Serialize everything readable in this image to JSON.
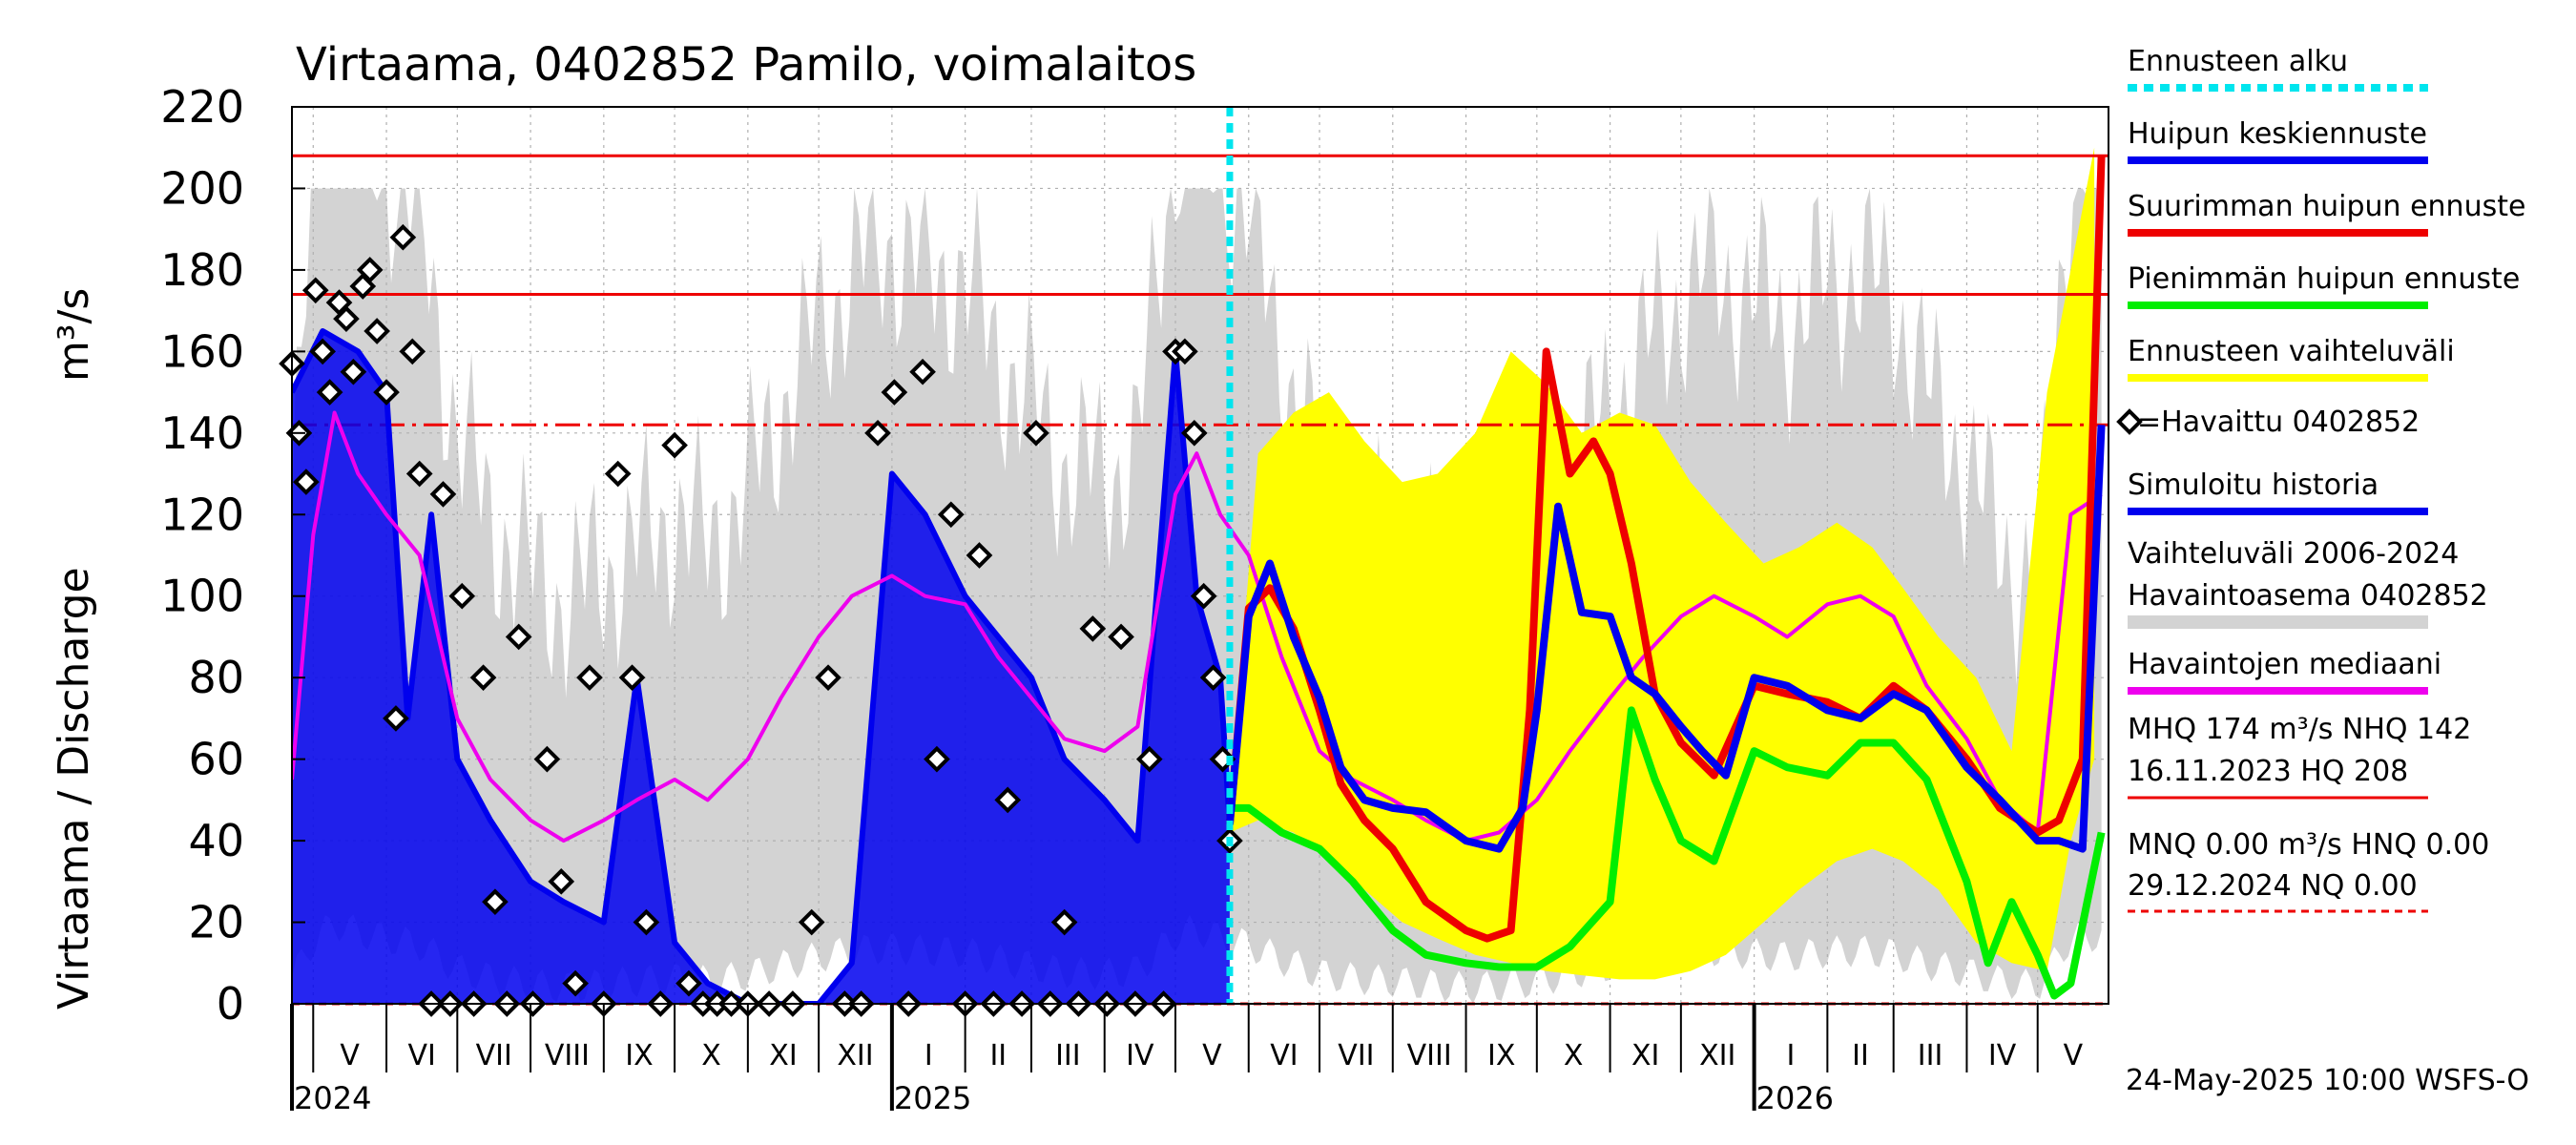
{
  "chart_data": {
    "type": "line",
    "title": "Virtaama, 0402852 Pamilo, voimalaitos",
    "ylabel": "Virtaama / Discharge",
    "yunit": "m³/s",
    "ylim": [
      0,
      220
    ],
    "yticks": [
      0,
      20,
      40,
      60,
      80,
      100,
      120,
      140,
      160,
      180,
      200,
      220
    ],
    "xlim": [
      "2024-04-22",
      "2026-05-31"
    ],
    "months": [
      {
        "label": "V",
        "start": "2024-05-01"
      },
      {
        "label": "VI",
        "start": "2024-06-01"
      },
      {
        "label": "VII",
        "start": "2024-07-01"
      },
      {
        "label": "VIII",
        "start": "2024-08-01"
      },
      {
        "label": "IX",
        "start": "2024-09-01"
      },
      {
        "label": "X",
        "start": "2024-10-01"
      },
      {
        "label": "XI",
        "start": "2024-11-01"
      },
      {
        "label": "XII",
        "start": "2024-12-01"
      },
      {
        "label": "I",
        "start": "2025-01-01"
      },
      {
        "label": "II",
        "start": "2025-02-01"
      },
      {
        "label": "III",
        "start": "2025-03-01"
      },
      {
        "label": "IV",
        "start": "2025-04-01"
      },
      {
        "label": "V",
        "start": "2025-05-01"
      },
      {
        "label": "VI",
        "start": "2025-06-01"
      },
      {
        "label": "VII",
        "start": "2025-07-01"
      },
      {
        "label": "VIII",
        "start": "2025-08-01"
      },
      {
        "label": "IX",
        "start": "2025-09-01"
      },
      {
        "label": "X",
        "start": "2025-10-01"
      },
      {
        "label": "XI",
        "start": "2025-11-01"
      },
      {
        "label": "XII",
        "start": "2025-12-01"
      },
      {
        "label": "I",
        "start": "2026-01-01"
      },
      {
        "label": "II",
        "start": "2026-02-01"
      },
      {
        "label": "III",
        "start": "2026-03-01"
      },
      {
        "label": "IV",
        "start": "2026-04-01"
      },
      {
        "label": "V",
        "start": "2026-05-01"
      }
    ],
    "years": [
      {
        "label": "2024",
        "date": "2024-04-22"
      },
      {
        "label": "2025",
        "date": "2025-01-01"
      },
      {
        "label": "2026",
        "date": "2026-01-01"
      }
    ],
    "forecast_start": "2025-05-24",
    "reference_lines": [
      {
        "name": "HQ",
        "value": 208,
        "style": "solid"
      },
      {
        "name": "MHQ",
        "value": 174,
        "style": "solid"
      },
      {
        "name": "NHQ",
        "value": 142,
        "style": "dashdot"
      },
      {
        "name": "MNQ",
        "value": 0,
        "style": "dashed"
      }
    ],
    "series": [
      {
        "name": "Ennusteen vaihteluväli",
        "type": "band",
        "x": [
          "2025-05-24",
          "2025-06-05",
          "2025-06-20",
          "2025-07-05",
          "2025-07-20",
          "2025-08-05",
          "2025-08-20",
          "2025-09-05",
          "2025-09-20",
          "2025-10-05",
          "2025-10-20",
          "2025-11-05",
          "2025-11-20",
          "2025-12-05",
          "2025-12-20",
          "2026-01-05",
          "2026-01-20",
          "2026-02-05",
          "2026-02-20",
          "2026-03-05",
          "2026-03-20",
          "2026-04-05",
          "2026-04-20",
          "2026-05-05",
          "2026-05-15",
          "2026-05-25"
        ],
        "low": [
          42,
          45,
          42,
          35,
          28,
          20,
          16,
          12,
          10,
          8,
          7,
          6,
          6,
          8,
          12,
          20,
          28,
          35,
          38,
          35,
          28,
          15,
          10,
          8,
          40,
          60
        ],
        "high": [
          48,
          135,
          145,
          150,
          138,
          128,
          130,
          140,
          160,
          152,
          140,
          145,
          142,
          128,
          118,
          108,
          112,
          118,
          112,
          102,
          90,
          80,
          62,
          150,
          180,
          210
        ]
      },
      {
        "name": "Huipun keskiennuste",
        "x": [
          "2025-05-24",
          "2025-06-01",
          "2025-06-10",
          "2025-06-20",
          "2025-07-01",
          "2025-07-10",
          "2025-07-20",
          "2025-08-01",
          "2025-08-15",
          "2025-09-01",
          "2025-09-15",
          "2025-09-25",
          "2025-10-01",
          "2025-10-10",
          "2025-10-20",
          "2025-11-01",
          "2025-11-10",
          "2025-11-20",
          "2025-12-01",
          "2025-12-10",
          "2025-12-20",
          "2026-01-01",
          "2026-01-15",
          "2026-02-01",
          "2026-02-15",
          "2026-03-01",
          "2026-03-15",
          "2026-04-01",
          "2026-04-15",
          "2026-05-01",
          "2026-05-10",
          "2026-05-20",
          "2026-05-28"
        ],
        "values": [
          44,
          95,
          108,
          90,
          75,
          58,
          50,
          48,
          47,
          40,
          38,
          48,
          72,
          122,
          96,
          95,
          80,
          76,
          68,
          62,
          56,
          80,
          78,
          72,
          70,
          76,
          72,
          58,
          50,
          40,
          40,
          38,
          142
        ]
      },
      {
        "name": "Suurimman huipun ennuste",
        "x": [
          "2025-05-24",
          "2025-06-01",
          "2025-06-10",
          "2025-06-20",
          "2025-07-01",
          "2025-07-10",
          "2025-07-20",
          "2025-08-01",
          "2025-08-15",
          "2025-09-01",
          "2025-09-10",
          "2025-09-20",
          "2025-09-28",
          "2025-10-05",
          "2025-10-15",
          "2025-10-25",
          "2025-11-01",
          "2025-11-10",
          "2025-11-20",
          "2025-12-01",
          "2025-12-15",
          "2026-01-01",
          "2026-01-15",
          "2026-02-01",
          "2026-02-15",
          "2026-03-01",
          "2026-03-15",
          "2026-04-01",
          "2026-04-15",
          "2026-05-01",
          "2026-05-10",
          "2026-05-20",
          "2026-05-28"
        ],
        "values": [
          44,
          97,
          102,
          92,
          72,
          54,
          45,
          38,
          25,
          18,
          16,
          18,
          72,
          160,
          130,
          138,
          130,
          108,
          76,
          64,
          56,
          78,
          76,
          74,
          70,
          78,
          72,
          60,
          48,
          42,
          45,
          60,
          208
        ]
      },
      {
        "name": "Pienimmän huipun ennuste",
        "x": [
          "2025-05-24",
          "2025-06-01",
          "2025-06-15",
          "2025-07-01",
          "2025-07-15",
          "2025-08-01",
          "2025-08-15",
          "2025-09-01",
          "2025-09-15",
          "2025-10-01",
          "2025-10-15",
          "2025-11-01",
          "2025-11-10",
          "2025-11-20",
          "2025-12-01",
          "2025-12-15",
          "2026-01-01",
          "2026-01-15",
          "2026-02-01",
          "2026-02-15",
          "2026-03-01",
          "2026-03-15",
          "2026-04-01",
          "2026-04-10",
          "2026-04-20",
          "2026-05-01",
          "2026-05-08",
          "2026-05-15",
          "2026-05-22",
          "2026-05-28"
        ],
        "values": [
          48,
          48,
          42,
          38,
          30,
          18,
          12,
          10,
          9,
          9,
          14,
          25,
          72,
          55,
          40,
          35,
          62,
          58,
          56,
          64,
          64,
          55,
          30,
          10,
          25,
          12,
          2,
          5,
          25,
          42
        ]
      },
      {
        "name": "Simuloitu historia",
        "x": [
          "2024-04-22",
          "2024-05-05",
          "2024-05-20",
          "2024-06-01",
          "2024-06-10",
          "2024-06-20",
          "2024-07-01",
          "2024-07-15",
          "2024-08-01",
          "2024-08-15",
          "2024-09-01",
          "2024-09-15",
          "2024-10-01",
          "2024-10-15",
          "2024-11-01",
          "2024-11-15",
          "2024-12-01",
          "2024-12-15",
          "2025-01-01",
          "2025-01-15",
          "2025-02-01",
          "2025-02-15",
          "2025-03-01",
          "2025-03-15",
          "2025-04-01",
          "2025-04-15",
          "2025-05-01",
          "2025-05-10",
          "2025-05-20",
          "2025-05-24"
        ],
        "values": [
          150,
          165,
          160,
          150,
          70,
          120,
          60,
          45,
          30,
          25,
          20,
          80,
          15,
          5,
          0,
          0,
          0,
          10,
          130,
          120,
          100,
          90,
          80,
          60,
          50,
          40,
          160,
          100,
          80,
          44
        ]
      },
      {
        "name": "Havaittu 0402852",
        "type": "markers",
        "x": [
          "2024-04-22",
          "2024-04-25",
          "2024-04-28",
          "2024-05-02",
          "2024-05-05",
          "2024-05-08",
          "2024-05-12",
          "2024-05-15",
          "2024-05-18",
          "2024-05-22",
          "2024-05-25",
          "2024-05-28",
          "2024-06-01",
          "2024-06-05",
          "2024-06-08",
          "2024-06-12",
          "2024-06-15",
          "2024-06-20",
          "2024-06-25",
          "2024-06-28",
          "2024-07-03",
          "2024-07-08",
          "2024-07-12",
          "2024-07-17",
          "2024-07-22",
          "2024-07-27",
          "2024-08-02",
          "2024-08-08",
          "2024-08-14",
          "2024-08-20",
          "2024-08-26",
          "2024-09-01",
          "2024-09-07",
          "2024-09-13",
          "2024-09-19",
          "2024-09-25",
          "2024-10-01",
          "2024-10-07",
          "2024-10-13",
          "2024-10-19",
          "2024-10-25",
          "2024-11-01",
          "2024-11-10",
          "2024-11-20",
          "2024-11-28",
          "2024-12-05",
          "2024-12-12",
          "2024-12-19",
          "2024-12-26",
          "2025-01-02",
          "2025-01-08",
          "2025-01-14",
          "2025-01-20",
          "2025-01-26",
          "2025-02-01",
          "2025-02-07",
          "2025-02-13",
          "2025-02-19",
          "2025-02-25",
          "2025-03-03",
          "2025-03-09",
          "2025-03-15",
          "2025-03-21",
          "2025-03-27",
          "2025-04-02",
          "2025-04-08",
          "2025-04-14",
          "2025-04-20",
          "2025-04-26",
          "2025-05-01",
          "2025-05-05",
          "2025-05-09",
          "2025-05-13",
          "2025-05-17",
          "2025-05-21",
          "2025-05-24"
        ],
        "values": [
          157,
          140,
          128,
          175,
          160,
          150,
          172,
          168,
          155,
          176,
          180,
          165,
          150,
          70,
          188,
          160,
          130,
          0,
          125,
          0,
          100,
          0,
          80,
          25,
          0,
          90,
          0,
          60,
          30,
          5,
          80,
          0,
          130,
          80,
          20,
          0,
          137,
          5,
          0,
          0,
          0,
          0,
          0,
          0,
          20,
          80,
          0,
          0,
          140,
          150,
          0,
          155,
          60,
          120,
          0,
          110,
          0,
          50,
          0,
          140,
          0,
          20,
          0,
          92,
          0,
          90,
          0,
          60,
          0,
          160,
          160,
          140,
          100,
          80,
          60,
          40
        ]
      },
      {
        "name": "Havaintojen mediaani",
        "x": [
          "2024-04-22",
          "2024-05-01",
          "2024-05-10",
          "2024-05-20",
          "2024-06-01",
          "2024-06-15",
          "2024-07-01",
          "2024-07-15",
          "2024-08-01",
          "2024-08-15",
          "2024-09-01",
          "2024-09-15",
          "2024-10-01",
          "2024-10-15",
          "2024-11-01",
          "2024-11-15",
          "2024-12-01",
          "2024-12-15",
          "2025-01-01",
          "2025-01-15",
          "2025-02-01",
          "2025-02-15",
          "2025-03-01",
          "2025-03-15",
          "2025-04-01",
          "2025-04-15",
          "2025-05-01",
          "2025-05-10",
          "2025-05-20",
          "2025-06-01",
          "2025-06-15",
          "2025-07-01",
          "2025-07-15",
          "2025-08-01",
          "2025-08-15",
          "2025-09-01",
          "2025-09-15",
          "2025-10-01",
          "2025-10-15",
          "2025-11-01",
          "2025-11-15",
          "2025-12-01",
          "2025-12-15",
          "2026-01-01",
          "2026-01-15",
          "2026-02-01",
          "2026-02-15",
          "2026-03-01",
          "2026-03-15",
          "2026-04-01",
          "2026-04-15",
          "2026-05-01",
          "2026-05-15",
          "2026-05-28"
        ],
        "values": [
          55,
          115,
          145,
          130,
          120,
          110,
          70,
          55,
          45,
          40,
          45,
          50,
          55,
          50,
          60,
          75,
          90,
          100,
          105,
          100,
          98,
          85,
          75,
          65,
          62,
          68,
          125,
          135,
          120,
          110,
          85,
          62,
          55,
          50,
          45,
          40,
          42,
          50,
          62,
          75,
          85,
          95,
          100,
          95,
          90,
          98,
          100,
          95,
          78,
          65,
          50,
          42,
          120,
          125
        ]
      }
    ],
    "legend": [
      {
        "label": "Ennusteen alku",
        "color": "#00e5ee",
        "style": "dotted"
      },
      {
        "label": "Huipun keskiennuste",
        "color": "#0000ee",
        "style": "solid"
      },
      {
        "label": "Suurimman huipun ennuste",
        "color": "#ee0000",
        "style": "solid"
      },
      {
        "label": "Pienimmän huipun ennuste",
        "color": "#00ee00",
        "style": "solid"
      },
      {
        "label": "Ennusteen vaihteluväli",
        "color": "#ffff00",
        "style": "solid"
      },
      {
        "label": "=Havaittu 0402852",
        "color": "#000000",
        "style": "marker"
      },
      {
        "label": "Simuloitu historia",
        "color": "#0000ee",
        "style": "solid"
      },
      {
        "label": "Vaihteluväli 2006-2024",
        "label2": " Havaintoasema 0402852",
        "color": "#d3d3d3",
        "style": "solid"
      },
      {
        "label": "Havaintojen mediaani",
        "color": "#ee00ee",
        "style": "solid"
      }
    ],
    "stats": {
      "line1": "MHQ  174 m³/s NHQ  142",
      "line2": "16.11.2023 HQ  208",
      "line3": "MNQ 0.00 m³/s HNQ 0.00",
      "line4": "29.12.2024 NQ 0.00"
    },
    "footer": "24-May-2025 10:00 WSFS-O",
    "colors": {
      "range": "#d3d3d3",
      "band": "#ffff00",
      "mean": "#0000ee",
      "max": "#ee0000",
      "min": "#00ee00",
      "history": "#0000ee",
      "median": "#ee00ee",
      "forecast_start": "#00e5ee",
      "refline": "#ee0000"
    }
  }
}
